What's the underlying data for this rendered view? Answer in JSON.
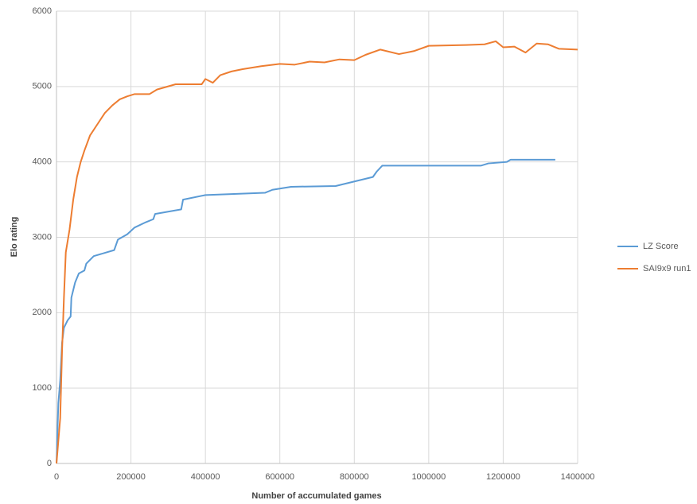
{
  "chart_data": {
    "type": "line",
    "xlabel": "Number of accumulated  games",
    "ylabel": "Elo rating",
    "xlim": [
      0,
      1400000
    ],
    "xticks": [
      0,
      200000,
      400000,
      600000,
      800000,
      1000000,
      1200000,
      1400000
    ],
    "ylim": [
      0,
      6000
    ],
    "yticks": [
      0,
      1000,
      2000,
      3000,
      4000,
      5000,
      6000
    ],
    "grid": true,
    "legend": "right",
    "series": [
      {
        "name": "LZ Score",
        "color": "#5b9bd5",
        "x": [
          0,
          5000,
          10000,
          15000,
          20000,
          30000,
          38000,
          40000,
          50000,
          60000,
          75000,
          80000,
          100000,
          155000,
          165000,
          190000,
          210000,
          240000,
          260000,
          265000,
          335000,
          340000,
          400000,
          560000,
          580000,
          630000,
          750000,
          850000,
          860000,
          875000,
          1140000,
          1160000,
          1210000,
          1220000,
          1340000
        ],
        "values": [
          0,
          800,
          1100,
          1600,
          1800,
          1900,
          1950,
          2200,
          2400,
          2520,
          2560,
          2650,
          2750,
          2830,
          2970,
          3040,
          3130,
          3200,
          3240,
          3310,
          3370,
          3500,
          3560,
          3590,
          3630,
          3670,
          3680,
          3800,
          3870,
          3950,
          3950,
          3980,
          4000,
          4030,
          4030
        ]
      },
      {
        "name": "SAI9x9 run1",
        "color": "#ed7d31",
        "x": [
          0,
          10000,
          15000,
          20000,
          25000,
          35000,
          45000,
          55000,
          65000,
          75000,
          90000,
          110000,
          130000,
          150000,
          170000,
          190000,
          210000,
          250000,
          270000,
          320000,
          390000,
          400000,
          420000,
          440000,
          470000,
          500000,
          550000,
          600000,
          640000,
          680000,
          720000,
          760000,
          800000,
          830000,
          870000,
          920000,
          960000,
          1000000,
          1100000,
          1150000,
          1180000,
          1200000,
          1230000,
          1260000,
          1290000,
          1320000,
          1350000,
          1400000
        ],
        "values": [
          0,
          600,
          1500,
          2200,
          2800,
          3100,
          3500,
          3800,
          4000,
          4150,
          4350,
          4500,
          4650,
          4750,
          4830,
          4870,
          4900,
          4900,
          4960,
          5030,
          5030,
          5100,
          5050,
          5150,
          5200,
          5230,
          5270,
          5300,
          5290,
          5330,
          5320,
          5360,
          5350,
          5420,
          5490,
          5430,
          5470,
          5540,
          5550,
          5560,
          5600,
          5520,
          5530,
          5450,
          5570,
          5560,
          5500,
          5490
        ]
      }
    ]
  }
}
